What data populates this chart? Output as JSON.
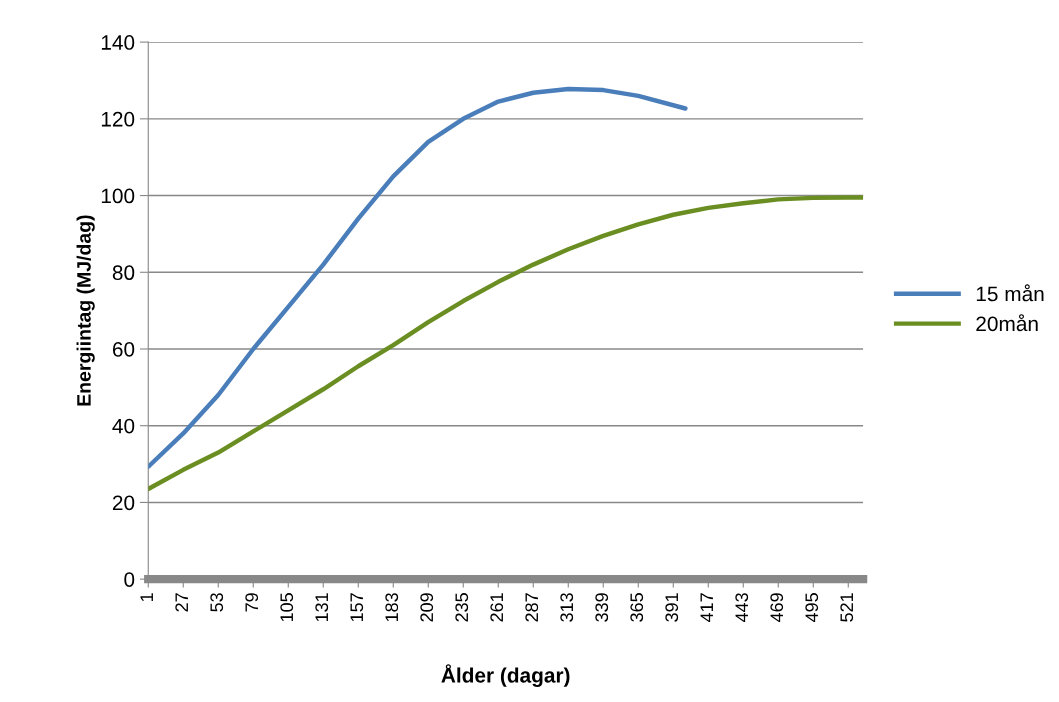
{
  "chart_data": {
    "type": "line",
    "xlabel": "Ålder (dagar)",
    "ylabel": "Energiintag (MJ/dag)",
    "xlim": [
      1,
      532
    ],
    "xticks": [
      1,
      27,
      53,
      79,
      105,
      131,
      157,
      183,
      209,
      235,
      261,
      287,
      313,
      339,
      365,
      391,
      417,
      443,
      469,
      495,
      521
    ],
    "ylim": [
      0,
      140
    ],
    "yticks": [
      0,
      20,
      40,
      60,
      80,
      100,
      120,
      140
    ],
    "grid": "y",
    "legend": "right",
    "marker": "none",
    "line_style": "solid",
    "series": [
      {
        "name": "15 mån",
        "color": "#4a7ebb",
        "x": [
          1,
          27,
          53,
          79,
          105,
          131,
          157,
          183,
          209,
          235,
          261,
          287,
          313,
          339,
          365,
          400
        ],
        "values": [
          29.3,
          38,
          48,
          60,
          71,
          82,
          94,
          105,
          114,
          120,
          124.5,
          126.8,
          127.8,
          127.5,
          126,
          122.7
        ]
      },
      {
        "name": "20mån",
        "color": "#6b8e23",
        "x": [
          1,
          27,
          53,
          79,
          105,
          131,
          157,
          183,
          209,
          235,
          261,
          287,
          313,
          339,
          365,
          391,
          417,
          443,
          469,
          495,
          521,
          532
        ],
        "values": [
          23.5,
          28.5,
          33,
          38.5,
          44,
          49.5,
          55.5,
          61,
          67,
          72.5,
          77.5,
          82,
          86,
          89.5,
          92.5,
          95,
          96.8,
          98,
          99,
          99.4,
          99.5,
          99.5
        ]
      }
    ]
  }
}
